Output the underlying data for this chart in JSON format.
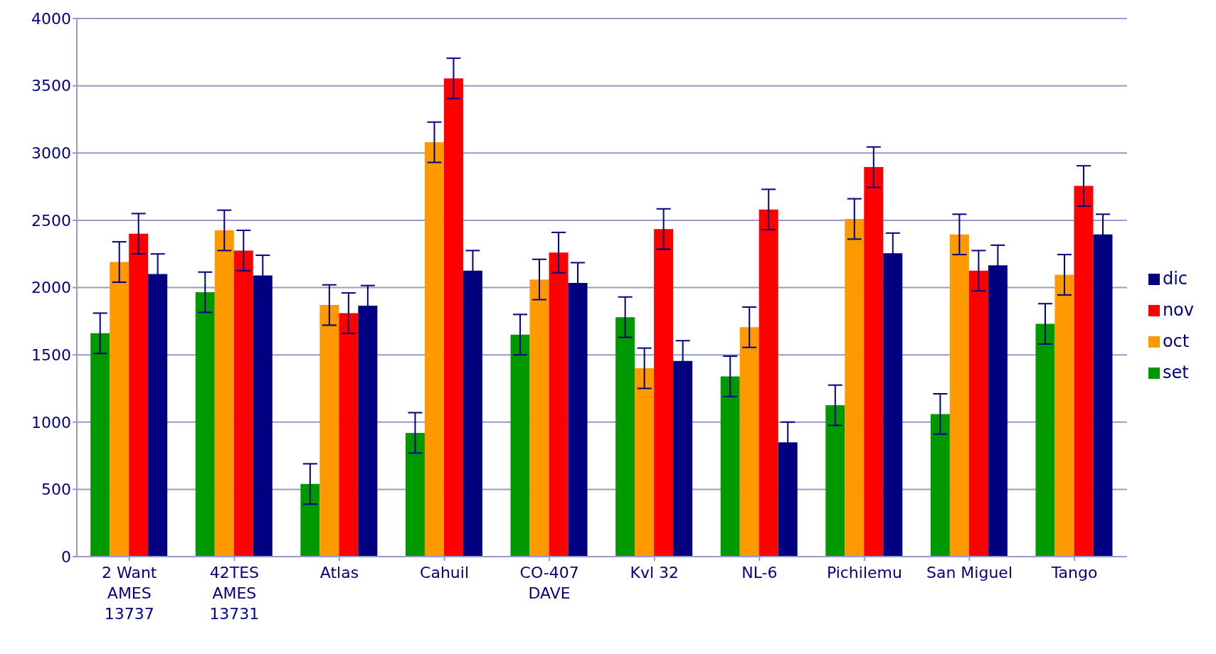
{
  "chart_data": {
    "type": "bar",
    "categories": [
      "2 Want\nAMES\n13737",
      "42TES\nAMES\n13731",
      "Atlas",
      "Cahuil",
      "CO-407\nDAVE",
      "Kvl 32",
      "NL-6",
      "Pichilemu",
      "San Miguel",
      "Tango"
    ],
    "series": [
      {
        "name": "set",
        "color": "#009900",
        "values": [
          1660,
          1965,
          540,
          920,
          1650,
          1780,
          1340,
          1125,
          1060,
          1730
        ],
        "errors": [
          150,
          150,
          150,
          150,
          150,
          150,
          150,
          150,
          150,
          150
        ]
      },
      {
        "name": "oct",
        "color": "#ff9900",
        "values": [
          2190,
          2425,
          1870,
          3080,
          2060,
          1400,
          1705,
          2510,
          2395,
          2095
        ],
        "errors": [
          150,
          150,
          150,
          150,
          150,
          150,
          150,
          150,
          150,
          150
        ]
      },
      {
        "name": "nov",
        "color": "#ff0000",
        "values": [
          2400,
          2275,
          1810,
          3555,
          2260,
          2435,
          2580,
          2895,
          2125,
          2755
        ],
        "errors": [
          150,
          150,
          150,
          150,
          150,
          150,
          150,
          150,
          150,
          150
        ]
      },
      {
        "name": "dic",
        "color": "#000080",
        "values": [
          2100,
          2090,
          1865,
          2125,
          2035,
          1455,
          850,
          2255,
          2165,
          2395
        ],
        "errors": [
          150,
          150,
          150,
          150,
          150,
          150,
          150,
          150,
          150,
          150
        ]
      }
    ],
    "ylim": [
      0,
      4000
    ],
    "yticks": [
      0,
      500,
      1000,
      1500,
      2000,
      2500,
      3000,
      3500,
      4000
    ],
    "grid": "y",
    "legend": "right"
  }
}
